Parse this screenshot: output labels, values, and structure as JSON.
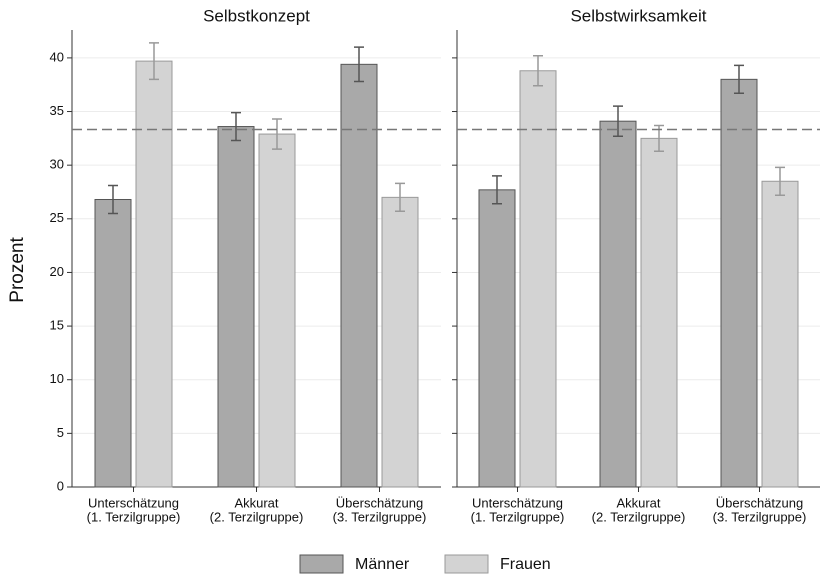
{
  "chart_data": [
    {
      "type": "bar",
      "title": "Selbstkonzept",
      "y_label": "Prozent",
      "categories": [
        [
          "Unterschätzung",
          "(1. Terzilgruppe)"
        ],
        [
          "Akkurat",
          "(2. Terzilgruppe)"
        ],
        [
          "Überschätzung",
          "(3. Terzilgruppe)"
        ]
      ],
      "series": [
        {
          "name": "Männer",
          "color": "#a9a9a9",
          "edge": "#555555",
          "values": [
            26.8,
            33.6,
            39.4
          ],
          "errors": [
            1.3,
            1.3,
            1.6
          ]
        },
        {
          "name": "Frauen",
          "color": "#d3d3d3",
          "edge": "#999999",
          "values": [
            39.7,
            32.9,
            27.0
          ],
          "errors": [
            1.7,
            1.4,
            1.3
          ]
        }
      ],
      "hline": 33.33,
      "ylim": [
        0,
        42.6
      ],
      "yticks": [
        0,
        5,
        10,
        15,
        20,
        25,
        30,
        35,
        40
      ],
      "grid": true,
      "legend": "bottom"
    },
    {
      "type": "bar",
      "title": "Selbstwirksamkeit",
      "categories": [
        [
          "Unterschätzung",
          "(1. Terzilgruppe)"
        ],
        [
          "Akkurat",
          "(2. Terzilgruppe)"
        ],
        [
          "Überschätzung",
          "(3. Terzilgruppe)"
        ]
      ],
      "series": [
        {
          "color": "#a9a9a9",
          "edge": "#555555",
          "values": [
            27.7,
            34.1,
            38.0
          ],
          "errors": [
            1.3,
            1.4,
            1.3
          ]
        },
        {
          "color": "#d3d3d3",
          "edge": "#999999",
          "values": [
            38.8,
            32.5,
            28.5
          ],
          "errors": [
            1.4,
            1.2,
            1.3
          ]
        }
      ],
      "hline": 33.33,
      "ylim": [
        0,
        42.6
      ],
      "yticks": [
        0,
        5,
        10,
        15,
        20,
        25,
        30,
        35,
        40
      ],
      "grid": true
    }
  ]
}
